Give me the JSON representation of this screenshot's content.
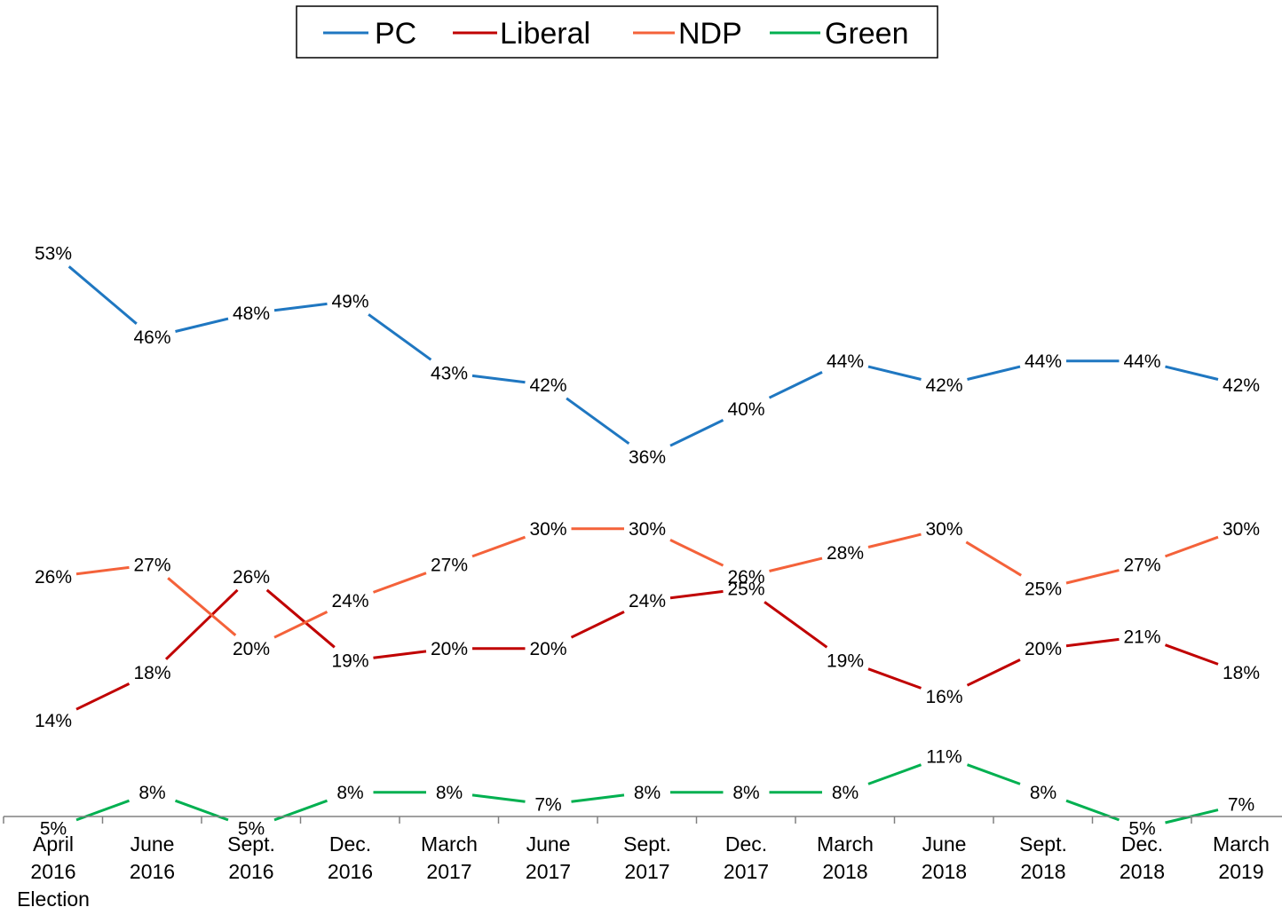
{
  "chart_data": {
    "type": "line",
    "title": "",
    "xlabel": "",
    "ylabel": "",
    "grid": false,
    "y_axis_visible": false,
    "legend_position": "top-center",
    "categories": [
      [
        "April",
        "2016",
        "Election"
      ],
      [
        "June",
        "2016"
      ],
      [
        "Sept.",
        "2016"
      ],
      [
        "Dec.",
        "2016"
      ],
      [
        "March",
        "2017"
      ],
      [
        "June",
        "2017"
      ],
      [
        "Sept.",
        "2017"
      ],
      [
        "Dec.",
        "2017"
      ],
      [
        "March",
        "2018"
      ],
      [
        "June",
        "2018"
      ],
      [
        "Sept.",
        "2018"
      ],
      [
        "Dec.",
        "2018"
      ],
      [
        "March",
        "2019"
      ]
    ],
    "ylim": [
      0,
      60
    ],
    "value_suffix": "%",
    "series": [
      {
        "name": "PC",
        "color": "#1F77C1",
        "values": [
          53,
          46,
          48,
          49,
          43,
          42,
          36,
          40,
          44,
          42,
          44,
          44,
          42
        ]
      },
      {
        "name": "Liberal",
        "color": "#C00000",
        "values": [
          14,
          18,
          26,
          19,
          20,
          20,
          24,
          25,
          19,
          16,
          20,
          21,
          18
        ]
      },
      {
        "name": "NDP",
        "color": "#F4623A",
        "values": [
          26,
          27,
          20,
          24,
          27,
          30,
          30,
          26,
          28,
          30,
          25,
          27,
          30
        ]
      },
      {
        "name": "Green",
        "color": "#00B050",
        "values": [
          5,
          8,
          5,
          8,
          8,
          7,
          8,
          8,
          8,
          11,
          8,
          5,
          7
        ]
      }
    ]
  }
}
